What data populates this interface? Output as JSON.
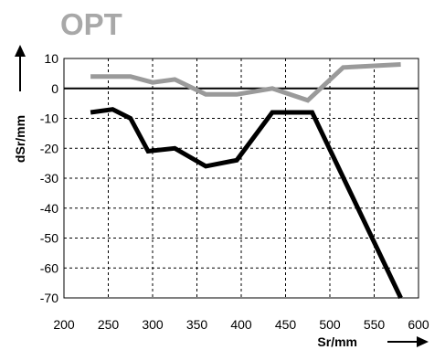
{
  "chart_data": {
    "type": "line",
    "title": "OPT",
    "xlabel": "Sr/mm",
    "ylabel": "dSr/mm",
    "xlim": [
      200,
      600
    ],
    "ylim": [
      -70,
      10
    ],
    "xticks": [
      200,
      250,
      300,
      350,
      400,
      450,
      500,
      550,
      600
    ],
    "yticks": [
      10,
      0,
      -10,
      -20,
      -30,
      -40,
      -50,
      -60,
      -70
    ],
    "grid": true,
    "zero_line": true,
    "series": [
      {
        "color": "#000000",
        "x": [
          230,
          255,
          275,
          295,
          325,
          360,
          395,
          435,
          480,
          580
        ],
        "y": [
          -8,
          -7,
          -10,
          -21,
          -20,
          -26,
          -24,
          -8,
          -8,
          -70
        ]
      },
      {
        "color": "#9a9a9a",
        "x": [
          230,
          250,
          275,
          300,
          325,
          360,
          395,
          435,
          475,
          515,
          580
        ],
        "y": [
          4,
          4,
          4,
          2,
          3,
          -2,
          -2,
          0,
          -4,
          7,
          8
        ]
      }
    ]
  }
}
